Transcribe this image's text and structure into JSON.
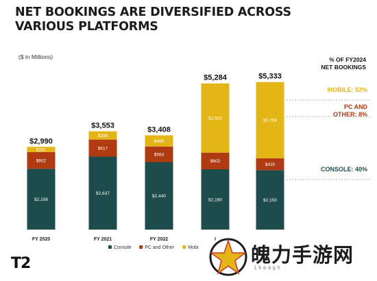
{
  "headline": {
    "line1": "NET BOOKINGS ARE DIVERSIFIED ACROSS",
    "line2": "VARIOUS PLATFORMS"
  },
  "unit_note": "($ in Millions)",
  "right_panel": {
    "title_line1": "% OF FY2024",
    "title_line2": "NET BOOKINGS",
    "mobile": "MOBILE: 52%",
    "pc_line1": "PC AND",
    "pc_line2": "OTHER: 8%",
    "console": "CONSOLE: 40%"
  },
  "colors": {
    "console": "#1e4b4b",
    "pc": "#b03b12",
    "mobile": "#e3b517"
  },
  "logo": "T2",
  "watermark": {
    "text": "魄力手游网",
    "sub": "ikeagh"
  },
  "chart_data": {
    "type": "bar",
    "stacked": true,
    "categories": [
      "FY 2020",
      "FY 2021",
      "FY 2022",
      "I",
      ""
    ],
    "totals": [
      "$2,990",
      "$3,553",
      "$3,408",
      "$5,284",
      "$5,333"
    ],
    "series": [
      {
        "name": "Console",
        "values": [
          2198,
          2637,
          2440,
          2180,
          2150
        ],
        "labels": [
          "$2,198",
          "$2,637",
          "$2,440",
          "$2,180",
          "$2,150"
        ]
      },
      {
        "name": "PC and Other",
        "values": [
          602,
          617,
          563,
          602,
          425
        ],
        "labels": [
          "$602",
          "$617",
          "$563",
          "$602",
          "$425"
        ]
      },
      {
        "name": "Mobi",
        "values": [
          191,
          299,
          405,
          2502,
          2758
        ],
        "labels": [
          "$191",
          "$299",
          "$405",
          "$2,502",
          "$2,758"
        ]
      }
    ],
    "ylim": [
      0,
      5400
    ],
    "grid": false,
    "legend": "bottom-center"
  }
}
